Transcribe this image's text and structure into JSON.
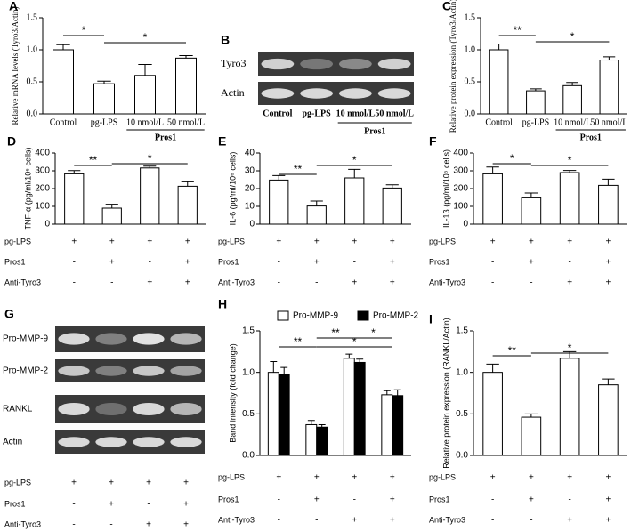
{
  "chart_data": [
    {
      "type": "bar",
      "panel": "A",
      "ylabel": "Relative mRNA levels (Tyro3/Actin)",
      "categories": [
        "Control",
        "pg-LPS",
        "10 nmol/L",
        "50 nmol/L"
      ],
      "group_label": "Pros1",
      "values": [
        1.0,
        0.47,
        0.6,
        0.87
      ],
      "errors": [
        0.08,
        0.04,
        0.17,
        0.04
      ],
      "color": "#ffffff",
      "ylim": [
        0,
        1.5
      ],
      "yticks": [
        {
          "value": 0,
          "label": "0.0"
        },
        0.5,
        {
          "value": 1,
          "label": "1.0"
        },
        1.5
      ],
      "annotations": [
        "*",
        "*"
      ]
    },
    {
      "type": "blot",
      "panel": "B",
      "rows": [
        "Tyro3",
        "Actin"
      ],
      "lanes": [
        "Control",
        "pg-LPS",
        "10 nmol/L",
        "50 nmol/L"
      ],
      "group_label": "Pros1"
    },
    {
      "type": "bar",
      "panel": "C",
      "ylabel": "Relative protein expression (Tyro3/Actin)",
      "categories": [
        "Control",
        "pg-LPS",
        "10 nmol/L",
        "50 nmol/L"
      ],
      "group_label": "Pros1",
      "values": [
        1.0,
        0.36,
        0.44,
        0.84
      ],
      "errors": [
        0.09,
        0.03,
        0.05,
        0.05
      ],
      "color": "#ffffff",
      "ylim": [
        0,
        1.5
      ],
      "yticks": [
        {
          "value": 0,
          "label": "0.0"
        },
        0.5,
        {
          "value": 1,
          "label": "1.0"
        },
        1.5
      ],
      "annotations": [
        "**",
        "*"
      ]
    },
    {
      "type": "bar",
      "panel": "D",
      "ylabel": "TNF-α (pg/ml/10⁶ cells)",
      "conditions": [
        {
          "name": "pg-LPS",
          "signs": [
            "+",
            "+",
            "+",
            "+"
          ]
        },
        {
          "name": "Pros1",
          "signs": [
            "-",
            "+",
            "-",
            "+"
          ]
        },
        {
          "name": "Anti-Tyro3",
          "signs": [
            "-",
            "-",
            "+",
            "+"
          ]
        }
      ],
      "values": [
        283,
        90,
        316,
        213
      ],
      "errors": [
        18,
        22,
        10,
        25
      ],
      "color": "#ffffff",
      "ylim": [
        0,
        400
      ],
      "yticks": [
        0,
        100,
        200,
        300,
        400
      ],
      "annotations": [
        "**",
        "*"
      ]
    },
    {
      "type": "bar",
      "panel": "E",
      "ylabel": "IL-6 (pg/ml/10⁶ cells)",
      "conditions": [
        {
          "name": "pg-LPS",
          "signs": [
            "+",
            "+",
            "+",
            "+"
          ]
        },
        {
          "name": "Pros1",
          "signs": [
            "-",
            "+",
            "-",
            "+"
          ]
        },
        {
          "name": "Anti-Tyro3",
          "signs": [
            "-",
            "-",
            "+",
            "+"
          ]
        }
      ],
      "values": [
        24.8,
        10.2,
        26,
        20.3
      ],
      "errors": [
        2.5,
        2.8,
        4.8,
        1.8
      ],
      "color": "#ffffff",
      "ylim": [
        0,
        40
      ],
      "yticks": [
        0,
        10,
        20,
        30,
        40
      ],
      "annotations": [
        "**",
        "*"
      ]
    },
    {
      "type": "bar",
      "panel": "F",
      "ylabel": "IL-1β (pg/ml/10⁶ cells)",
      "conditions": [
        {
          "name": "pg-LPS",
          "signs": [
            "+",
            "+",
            "+",
            "+"
          ]
        },
        {
          "name": "Pros1",
          "signs": [
            "-",
            "+",
            "-",
            "+"
          ]
        },
        {
          "name": "Anti-Tyro3",
          "signs": [
            "-",
            "-",
            "+",
            "+"
          ]
        }
      ],
      "values": [
        283,
        148,
        290,
        218
      ],
      "errors": [
        38,
        27,
        12,
        35
      ],
      "color": "#ffffff",
      "ylim": [
        0,
        400
      ],
      "yticks": [
        0,
        100,
        200,
        300,
        400
      ],
      "annotations": [
        "*",
        "*"
      ]
    },
    {
      "type": "blot",
      "panel": "G",
      "rows": [
        "Pro-MMP-9",
        "Pro-MMP-2",
        "RANKL",
        "Actin"
      ],
      "conditions": [
        {
          "name": "pg-LPS",
          "signs": [
            "+",
            "+",
            "+",
            "+"
          ]
        },
        {
          "name": "Pros1",
          "signs": [
            "-",
            "+",
            "-",
            "+"
          ]
        },
        {
          "name": "Anti-Tyro3",
          "signs": [
            "-",
            "-",
            "+",
            "+"
          ]
        }
      ]
    },
    {
      "type": "bar",
      "panel": "H",
      "ylabel": "Band intensity (fold change)",
      "conditions": [
        {
          "name": "pg-LPS",
          "signs": [
            "+",
            "+",
            "+",
            "+"
          ]
        },
        {
          "name": "Pros1",
          "signs": [
            "-",
            "+",
            "-",
            "+"
          ]
        },
        {
          "name": "Anti-Tyro3",
          "signs": [
            "-",
            "-",
            "+",
            "+"
          ]
        }
      ],
      "series": [
        {
          "name": "Pro-MMP-9",
          "color": "#ffffff",
          "values": [
            1.0,
            0.37,
            1.17,
            0.73
          ],
          "errors": [
            0.13,
            0.05,
            0.05,
            0.05
          ]
        },
        {
          "name": "Pro-MMP-2",
          "color": "#000000",
          "values": [
            0.97,
            0.34,
            1.12,
            0.72
          ],
          "errors": [
            0.09,
            0.03,
            0.04,
            0.07
          ]
        }
      ],
      "ylim": [
        0,
        1.5
      ],
      "yticks": [
        {
          "value": 0,
          "label": "0.0"
        },
        0.5,
        {
          "value": 1,
          "label": "1.0"
        },
        1.5
      ],
      "annotations": [
        "**",
        "**",
        "*",
        "*"
      ]
    },
    {
      "type": "bar",
      "panel": "I",
      "ylabel": "Relative protein expression (RANKL/Actin)",
      "conditions": [
        {
          "name": "pg-LPS",
          "signs": [
            "+",
            "+",
            "+",
            "+"
          ]
        },
        {
          "name": "Pros1",
          "signs": [
            "-",
            "+",
            "-",
            "+"
          ]
        },
        {
          "name": "Anti-Tyro3",
          "signs": [
            "-",
            "-",
            "+",
            "+"
          ]
        }
      ],
      "values": [
        1.0,
        0.46,
        1.17,
        0.85
      ],
      "errors": [
        0.1,
        0.04,
        0.08,
        0.07
      ],
      "color": "#ffffff",
      "ylim": [
        0,
        1.5
      ],
      "yticks": [
        {
          "value": 0,
          "label": "0.0"
        },
        0.5,
        {
          "value": 1,
          "label": "1.0"
        },
        1.5
      ],
      "annotations": [
        "**",
        "*"
      ]
    }
  ]
}
